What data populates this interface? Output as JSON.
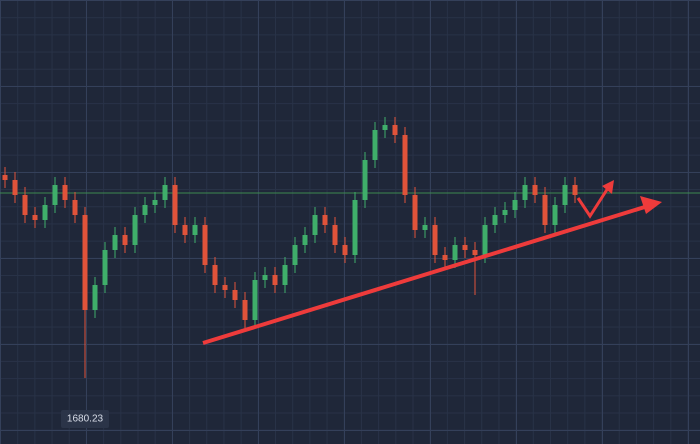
{
  "chart_data": {
    "type": "candlestick",
    "ylim": [
      1663.73,
      1774.73
    ],
    "price_line": 1726.48,
    "low_label": "1680.23",
    "up_color": "#3fae6a",
    "down_color": "#e0533a",
    "open": [
      1730.98,
      1729.73,
      1725.98,
      1720.98,
      1719.73,
      1723.48,
      1728.48,
      1724.73,
      1720.98,
      1697.23,
      1703.48,
      1712.23,
      1715.98,
      1713.48,
      1720.98,
      1723.48,
      1724.73,
      1728.48,
      1718.48,
      1715.98,
      1718.48,
      1708.48,
      1703.48,
      1702.23,
      1699.73,
      1694.73,
      1704.73,
      1705.98,
      1703.48,
      1708.48,
      1713.48,
      1715.98,
      1720.98,
      1718.48,
      1713.48,
      1710.98,
      1724.73,
      1734.73,
      1742.23,
      1743.48,
      1740.98,
      1725.98,
      1717.23,
      1718.48,
      1710.98,
      1709.73,
      1713.48,
      1712.23,
      1710.98,
      1718.48,
      1720.98,
      1722.23,
      1724.73,
      1728.48,
      1725.98,
      1718.48,
      1723.48,
      1728.48
    ],
    "high": [
      1732.98,
      1731.73,
      1727.98,
      1722.98,
      1725.48,
      1730.48,
      1730.48,
      1726.73,
      1722.98,
      1705.48,
      1714.23,
      1717.98,
      1717.98,
      1722.98,
      1725.48,
      1726.73,
      1730.48,
      1730.48,
      1720.48,
      1720.48,
      1720.48,
      1710.48,
      1705.48,
      1704.23,
      1701.73,
      1706.73,
      1707.98,
      1707.98,
      1710.48,
      1715.48,
      1717.98,
      1722.98,
      1722.98,
      1720.48,
      1715.48,
      1726.73,
      1736.73,
      1744.23,
      1745.48,
      1745.48,
      1742.98,
      1727.98,
      1720.48,
      1720.48,
      1712.98,
      1715.48,
      1715.48,
      1714.23,
      1720.48,
      1722.98,
      1724.23,
      1726.73,
      1730.48,
      1730.48,
      1727.98,
      1725.48,
      1730.48,
      1730.48
    ],
    "low": [
      1727.73,
      1723.98,
      1718.98,
      1717.73,
      1717.73,
      1721.48,
      1722.73,
      1718.98,
      1680.23,
      1695.23,
      1701.48,
      1710.23,
      1711.48,
      1711.48,
      1718.98,
      1721.48,
      1722.73,
      1716.48,
      1713.98,
      1713.98,
      1706.48,
      1701.48,
      1700.23,
      1697.73,
      1692.73,
      1692.73,
      1702.73,
      1701.48,
      1701.48,
      1706.48,
      1711.48,
      1713.98,
      1716.48,
      1711.48,
      1708.98,
      1708.98,
      1722.73,
      1732.73,
      1740.23,
      1738.98,
      1723.98,
      1715.23,
      1715.23,
      1708.98,
      1707.73,
      1707.73,
      1710.23,
      1700.98,
      1708.98,
      1716.48,
      1718.98,
      1720.23,
      1722.73,
      1723.98,
      1716.48,
      1716.48,
      1721.48,
      1723.98
    ],
    "close": [
      1729.73,
      1725.98,
      1720.98,
      1719.73,
      1723.48,
      1728.48,
      1724.73,
      1720.98,
      1697.23,
      1703.48,
      1712.23,
      1715.98,
      1713.48,
      1720.98,
      1723.48,
      1724.73,
      1728.48,
      1718.48,
      1715.98,
      1718.48,
      1708.48,
      1703.48,
      1702.23,
      1699.73,
      1694.73,
      1704.73,
      1705.98,
      1703.48,
      1708.48,
      1713.48,
      1715.98,
      1720.98,
      1718.48,
      1713.48,
      1710.98,
      1724.73,
      1734.73,
      1742.23,
      1743.48,
      1740.98,
      1725.98,
      1717.23,
      1718.48,
      1710.98,
      1709.73,
      1713.48,
      1712.23,
      1710.98,
      1718.48,
      1720.98,
      1722.23,
      1724.73,
      1728.48,
      1725.98,
      1718.48,
      1723.48,
      1728.48,
      1725.98
    ]
  }
}
